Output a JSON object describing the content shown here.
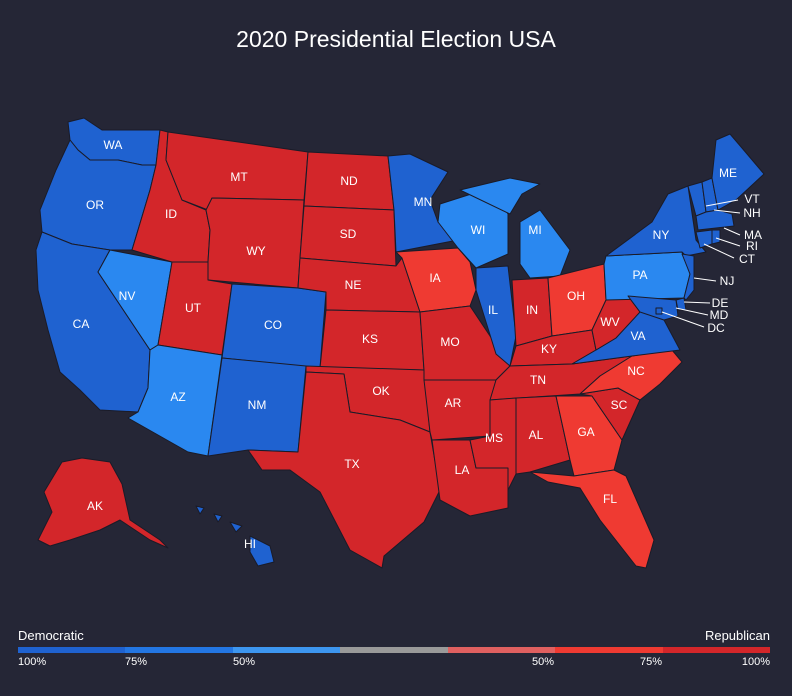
{
  "title": "2020 Presidential Election USA",
  "colors": {
    "dem_strong": "#1f62d0",
    "dem_lean": "#2a88f0",
    "rep_strong": "#d3262a",
    "rep_lean": "#ef3a32",
    "background": "#252636"
  },
  "states": [
    {
      "code": "WA",
      "party": "dem_strong"
    },
    {
      "code": "OR",
      "party": "dem_strong"
    },
    {
      "code": "CA",
      "party": "dem_strong"
    },
    {
      "code": "NV",
      "party": "dem_lean"
    },
    {
      "code": "ID",
      "party": "rep_strong"
    },
    {
      "code": "MT",
      "party": "rep_strong"
    },
    {
      "code": "WY",
      "party": "rep_strong"
    },
    {
      "code": "UT",
      "party": "rep_strong"
    },
    {
      "code": "AZ",
      "party": "dem_lean"
    },
    {
      "code": "CO",
      "party": "dem_strong"
    },
    {
      "code": "NM",
      "party": "dem_strong"
    },
    {
      "code": "ND",
      "party": "rep_strong"
    },
    {
      "code": "SD",
      "party": "rep_strong"
    },
    {
      "code": "NE",
      "party": "rep_strong"
    },
    {
      "code": "KS",
      "party": "rep_strong"
    },
    {
      "code": "OK",
      "party": "rep_strong"
    },
    {
      "code": "TX",
      "party": "rep_strong"
    },
    {
      "code": "MN",
      "party": "dem_strong"
    },
    {
      "code": "IA",
      "party": "rep_lean"
    },
    {
      "code": "MO",
      "party": "rep_strong"
    },
    {
      "code": "AR",
      "party": "rep_strong"
    },
    {
      "code": "LA",
      "party": "rep_strong"
    },
    {
      "code": "WI",
      "party": "dem_lean"
    },
    {
      "code": "IL",
      "party": "dem_strong"
    },
    {
      "code": "MI",
      "party": "dem_lean"
    },
    {
      "code": "IN",
      "party": "rep_strong"
    },
    {
      "code": "OH",
      "party": "rep_lean"
    },
    {
      "code": "KY",
      "party": "rep_strong"
    },
    {
      "code": "TN",
      "party": "rep_strong"
    },
    {
      "code": "MS",
      "party": "rep_strong"
    },
    {
      "code": "AL",
      "party": "rep_strong"
    },
    {
      "code": "GA",
      "party": "rep_lean"
    },
    {
      "code": "FL",
      "party": "rep_lean"
    },
    {
      "code": "SC",
      "party": "rep_strong"
    },
    {
      "code": "NC",
      "party": "rep_lean"
    },
    {
      "code": "VA",
      "party": "dem_strong"
    },
    {
      "code": "WV",
      "party": "rep_strong"
    },
    {
      "code": "PA",
      "party": "dem_lean"
    },
    {
      "code": "NY",
      "party": "dem_strong"
    },
    {
      "code": "ME",
      "party": "dem_strong"
    },
    {
      "code": "VT",
      "party": "dem_strong"
    },
    {
      "code": "NH",
      "party": "dem_strong"
    },
    {
      "code": "MA",
      "party": "dem_strong"
    },
    {
      "code": "RI",
      "party": "dem_strong"
    },
    {
      "code": "CT",
      "party": "dem_strong"
    },
    {
      "code": "NJ",
      "party": "dem_strong"
    },
    {
      "code": "DE",
      "party": "dem_strong"
    },
    {
      "code": "MD",
      "party": "dem_strong"
    },
    {
      "code": "DC",
      "party": "dem_strong"
    },
    {
      "code": "AK",
      "party": "rep_strong"
    },
    {
      "code": "HI",
      "party": "dem_strong"
    }
  ],
  "legend": {
    "left_label": "Democratic",
    "right_label": "Republican",
    "scale_colors": [
      "#1f62d0",
      "#2376e3",
      "#3d96f0",
      "#9a9a9a",
      "#e06060",
      "#ef3a32",
      "#d3262a"
    ],
    "ticks": [
      "100%",
      "75%",
      "50%",
      "50%",
      "75%",
      "100%"
    ]
  }
}
